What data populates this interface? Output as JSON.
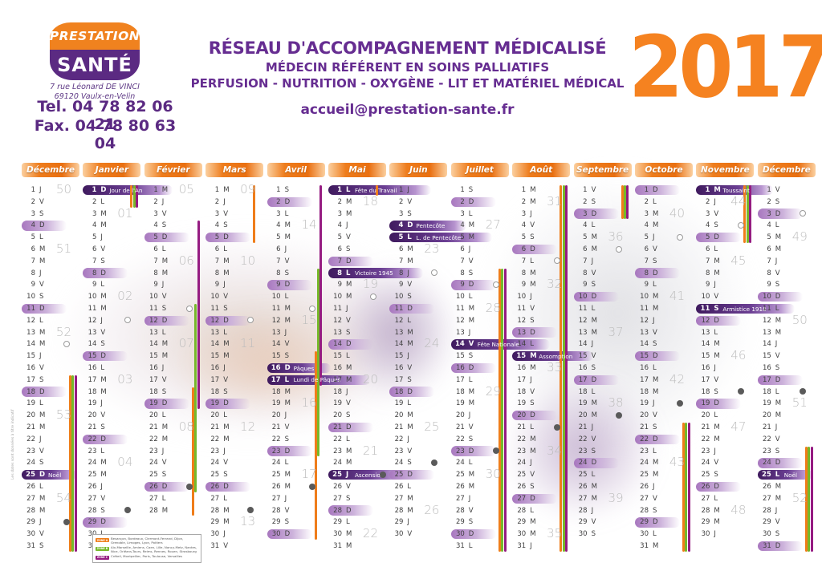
{
  "brand": {
    "logo_top": "PRESTATION",
    "logo_bottom": "SANTÉ",
    "address_line1": "7 rue Léonard DE VINCI",
    "address_line2": "69120 Vaulx-en-Velin",
    "tel": "Tel. 04 78 82 06 21",
    "fax": "Fax. 04 78 80 63 04"
  },
  "header": {
    "title": "RÉSEAU D'ACCOMPAGNEMENT MÉDICALISÉ",
    "subtitle1": "MÉDECIN RÉFÉRENT EN SOINS PALLIATIFS",
    "subtitle2": "PERFUSION - NUTRITION - OXYGÈNE - LIT ET MATÉRIEL MÉDICAL",
    "email": "accueil@prestation-sante.fr",
    "year": "2017"
  },
  "colors": {
    "purple": "#5b2a82",
    "titlepurple": "#662d91",
    "orange": "#f0821f",
    "yearorange": "#f58220",
    "zoneA": "#ef7d1a",
    "zoneB": "#76b82a",
    "zoneC": "#951b81",
    "weekgray": "#bdbdbd",
    "daytext": "#3f3f3f"
  },
  "legend": {
    "zones": [
      {
        "name": "ZONE A",
        "color_key": "zoneA",
        "cities": "Besançon, Bordeaux, Clermont-Ferrand, Dijon, Grenoble, Limoges, Lyon, Poitiers"
      },
      {
        "name": "ZONE B",
        "color_key": "zoneB",
        "cities": "Aix-Marseille, Amiens, Caen, Lille, Nancy-Metz, Nantes, Nice, Orléans-Tours, Reims, Rennes, Rouen, Strasbourg"
      },
      {
        "name": "ZONE C",
        "color_key": "zoneC",
        "cities": "Créteil, Montpellier, Paris, Toulouse, Versailles"
      }
    ]
  },
  "footer": {
    "disclaimer": "Les dates sont données à titre indicatif"
  },
  "calendar": {
    "months": [
      {
        "name": "Décembre",
        "letters": "JVSDLMMJVSDLMMJVSDLMMJVSDLMMJVS",
        "weeks": {
          "1": "50",
          "6": "51",
          "13": "52",
          "20": "53",
          "27": "54"
        },
        "moons": {
          "14": "full",
          "29": "new"
        },
        "holidays": {
          "25": "Noël"
        },
        "stripes": [
          {
            "zone": "A",
            "from": 17,
            "to": 31
          },
          {
            "zone": "B",
            "from": 17,
            "to": 31
          },
          {
            "zone": "C",
            "from": 17,
            "to": 31
          }
        ]
      },
      {
        "name": "Janvier",
        "letters": "DLMMJVSDLMMJVSDLMMJVSDLMMJVSDLM",
        "weeks": {
          "3": "01",
          "10": "02",
          "17": "03",
          "24": "04"
        },
        "moons": {
          "12": "full",
          "28": "new"
        },
        "holidays": {
          "1": "Jour de l'An"
        },
        "stripes": [
          {
            "zone": "A",
            "from": 1,
            "to": 2
          },
          {
            "zone": "B",
            "from": 1,
            "to": 2
          },
          {
            "zone": "C",
            "from": 1,
            "to": 2
          }
        ]
      },
      {
        "name": "Février",
        "letters": "MJVSDLMMJVSDLMMJVSDLMMJVSDLM",
        "weeks": {
          "1": "05",
          "7": "06",
          "14": "07",
          "21": "08"
        },
        "moons": {
          "11": "full",
          "26": "new"
        },
        "holidays": {},
        "stripes": [
          {
            "zone": "C",
            "from": 4,
            "to": 19
          },
          {
            "zone": "B",
            "from": 11,
            "to": 26
          },
          {
            "zone": "A",
            "from": 18,
            "to": 28
          }
        ]
      },
      {
        "name": "Mars",
        "letters": "MJVSDLMMJVSDLMMJVSDLMMJVSDLMMJV",
        "weeks": {
          "1": "09",
          "7": "10",
          "14": "11",
          "21": "12",
          "29": "13"
        },
        "moons": {
          "12": "full",
          "28": "new"
        },
        "holidays": {},
        "stripes": [
          {
            "zone": "A",
            "from": 1,
            "to": 5
          }
        ]
      },
      {
        "name": "Avril",
        "letters": "SDLMMJVSDLMMJVSDLMMJVSDLMMJVSD",
        "weeks": {
          "4": "14",
          "12": "15",
          "19": "16",
          "25": "17"
        },
        "moons": {
          "11": "full",
          "26": "new"
        },
        "holidays": {
          "16": "Pâques",
          "17": "Lundi de Pâques"
        },
        "stripes": [
          {
            "zone": "C",
            "from": 1,
            "to": 17
          },
          {
            "zone": "B",
            "from": 8,
            "to": 23
          },
          {
            "zone": "A",
            "from": 15,
            "to": 30
          }
        ]
      },
      {
        "name": "Mai",
        "letters": "LMMJVSDLMMJVSDLMMJVSDLMMJVSDLMM",
        "weeks": {
          "2": "18",
          "9": "19",
          "17": "20",
          "23": "21",
          "30": "22"
        },
        "moons": {
          "10": "full",
          "25": "new"
        },
        "holidays": {
          "1": "Fête du Travail",
          "8": "Victoire 1945",
          "25": "Ascension"
        },
        "stripes": [
          {
            "zone": "A",
            "from": 1,
            "to": 1
          }
        ]
      },
      {
        "name": "Juin",
        "letters": "JVSDLMMJVSDLMMJVSDLMMJVSDLMMJV",
        "weeks": {
          "6": "23",
          "14": "24",
          "21": "25",
          "28": "26"
        },
        "moons": {
          "8": "full",
          "24": "new"
        },
        "holidays": {
          "4": "Pentecôte",
          "5": "L. de Pentecôte"
        },
        "stripes": []
      },
      {
        "name": "Juillet",
        "letters": "SDLMMJVSDLMMJVSDLMMJVSDLMMJVSDL",
        "weeks": {
          "4": "27",
          "11": "28",
          "18": "29",
          "25": "30"
        },
        "moons": {
          "9": "full",
          "23": "new"
        },
        "holidays": {
          "14": "Fête Nationale"
        },
        "stripes": [
          {
            "zone": "A",
            "from": 8,
            "to": 31
          },
          {
            "zone": "B",
            "from": 8,
            "to": 31
          },
          {
            "zone": "C",
            "from": 8,
            "to": 31
          }
        ]
      },
      {
        "name": "Août",
        "letters": "MMJVSDLMMJVSDLMMJVSDLMMJVSDLMMJ",
        "weeks": {
          "2": "31",
          "9": "32",
          "16": "33",
          "23": "34",
          "30": "35"
        },
        "moons": {
          "7": "full",
          "21": "new"
        },
        "holidays": {
          "15": "Assomption"
        },
        "stripes": [
          {
            "zone": "A",
            "from": 1,
            "to": 31
          },
          {
            "zone": "B",
            "from": 1,
            "to": 31
          },
          {
            "zone": "C",
            "from": 1,
            "to": 31
          }
        ]
      },
      {
        "name": "Septembre",
        "letters": "VSDLMMJVSDLMMJVSDLMMJVSDLMMJVS",
        "weeks": {
          "5": "36",
          "13": "37",
          "19": "38",
          "27": "39"
        },
        "moons": {
          "6": "full",
          "20": "new"
        },
        "holidays": {},
        "stripes": [
          {
            "zone": "A",
            "from": 1,
            "to": 3
          },
          {
            "zone": "B",
            "from": 1,
            "to": 3
          },
          {
            "zone": "C",
            "from": 1,
            "to": 3
          }
        ]
      },
      {
        "name": "Octobre",
        "letters": "DLMMJVSDLMMJVSDLMMJVSDLMMJVSDLM",
        "weeks": {
          "3": "40",
          "10": "41",
          "17": "42",
          "24": "43"
        },
        "moons": {
          "5": "full",
          "19": "new"
        },
        "holidays": {},
        "stripes": [
          {
            "zone": "A",
            "from": 21,
            "to": 31
          },
          {
            "zone": "B",
            "from": 21,
            "to": 31
          },
          {
            "zone": "C",
            "from": 21,
            "to": 31
          }
        ]
      },
      {
        "name": "Novembre",
        "letters": "MJVSDLMMJVSDLMMJVSDLMMJVSDLMMJ",
        "weeks": {
          "2": "44",
          "7": "45",
          "15": "46",
          "21": "47",
          "28": "48"
        },
        "moons": {
          "4": "full",
          "18": "new"
        },
        "holidays": {
          "1": "Toussaint",
          "11": "Armistice 1918"
        },
        "stripes": [
          {
            "zone": "A",
            "from": 1,
            "to": 5
          },
          {
            "zone": "B",
            "from": 1,
            "to": 5
          },
          {
            "zone": "C",
            "from": 1,
            "to": 5
          }
        ]
      },
      {
        "name": "Décembre",
        "letters": "VSDLMMJVSDLMMJVSDLMMJVSDLMMJVSD",
        "weeks": {
          "5": "49",
          "12": "50",
          "19": "51",
          "27": "52"
        },
        "moons": {
          "3": "full",
          "18": "new"
        },
        "holidays": {
          "25": "Noël"
        },
        "stripes": [
          {
            "zone": "A",
            "from": 23,
            "to": 31
          },
          {
            "zone": "B",
            "from": 23,
            "to": 31
          },
          {
            "zone": "C",
            "from": 23,
            "to": 31
          }
        ]
      }
    ]
  }
}
